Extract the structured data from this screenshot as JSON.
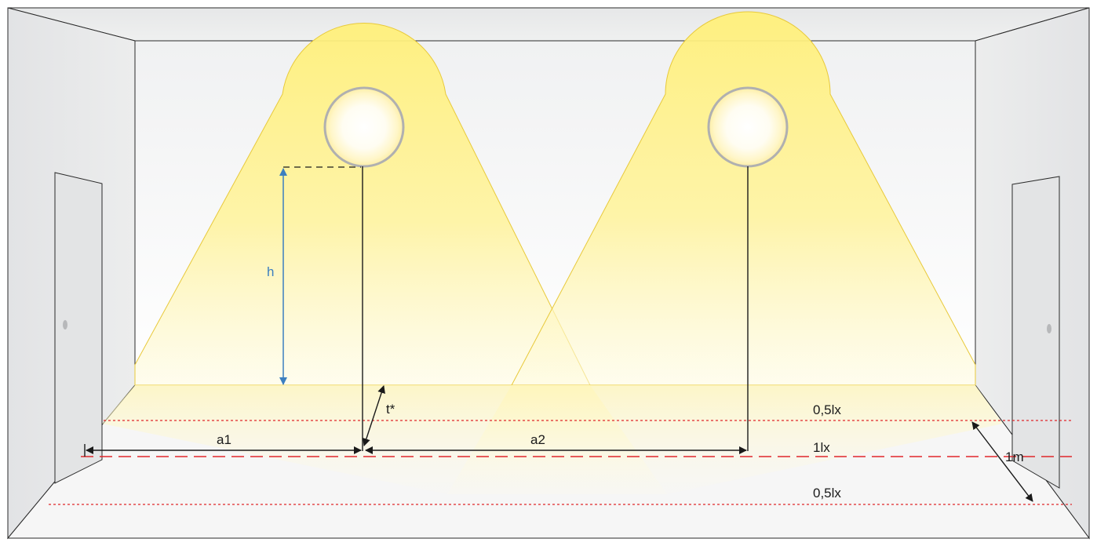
{
  "labels": {
    "height": "h",
    "tilt": "t*",
    "distance_1": "a1",
    "distance_2": "a2",
    "illuminance_upper": "0,5lx",
    "illuminance_center": "1lx",
    "illuminance_lower": "0,5lx",
    "width_marker": "1m"
  },
  "colors": {
    "light_cone": "#fff18a",
    "illuminance_line": "#e0262b",
    "height_arrow": "#3c7fc0",
    "wall": "#e9eaeb",
    "floor": "#f6f6f6"
  }
}
